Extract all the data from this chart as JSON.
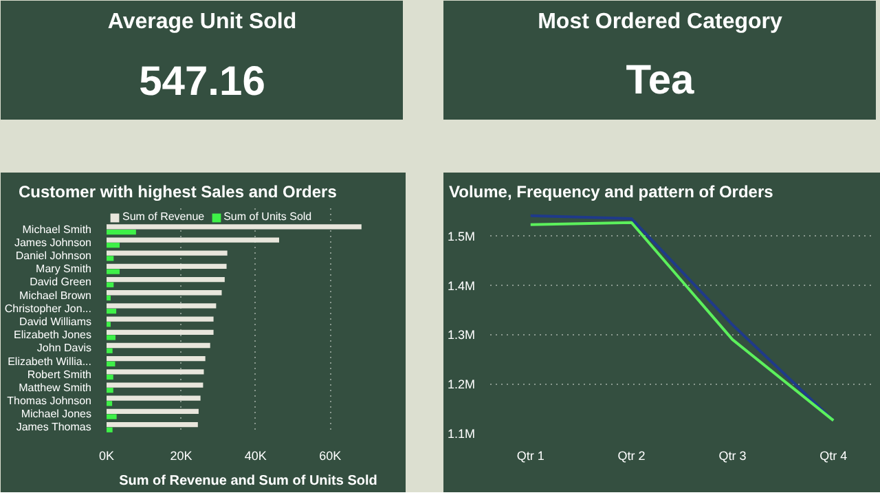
{
  "chart_data": [
    {
      "type": "other",
      "title": "Average Unit Sold",
      "annotations": [
        "547.16"
      ]
    },
    {
      "type": "other",
      "title": "Most Ordered Category",
      "annotations": [
        "Tea"
      ]
    },
    {
      "type": "bar",
      "orientation": "horizontal",
      "title": "Customer with highest Sales and Orders",
      "xlabel": "Sum of Revenue and Sum of Units Sold",
      "categories": [
        "Michael Smith",
        "James Johnson",
        "Daniel Johnson",
        "Mary Smith",
        "David Green",
        "Michael Brown",
        "Christopher Jon...",
        "David Williams",
        "Elizabeth Jones",
        "John Davis",
        "Elizabeth Willia...",
        "Robert Smith",
        "Matthew Smith",
        "Thomas Johnson",
        "Michael Jones",
        "James Thomas"
      ],
      "series": [
        {
          "name": "Sum of Revenue",
          "color": "#e8e6dc",
          "values": [
            68400,
            46300,
            32400,
            32200,
            31700,
            30900,
            29400,
            28700,
            28700,
            27800,
            26500,
            26100,
            25900,
            25200,
            24700,
            24500
          ]
        },
        {
          "name": "Sum of Units Sold",
          "color": "#3ef048",
          "values": [
            7900,
            3500,
            1900,
            3500,
            1900,
            1100,
            2600,
            1100,
            2400,
            1600,
            2300,
            1800,
            1800,
            1500,
            2700,
            1600
          ]
        }
      ],
      "xlim": [
        0,
        76000
      ],
      "xticks": [
        {
          "value": 0,
          "label": "0K"
        },
        {
          "value": 20000,
          "label": "20K"
        },
        {
          "value": 40000,
          "label": "40K"
        },
        {
          "value": 60000,
          "label": "60K"
        }
      ],
      "grid": "x",
      "legend": "top left"
    },
    {
      "type": "line",
      "title": "Volume, Frequency and pattern of Orders",
      "categories": [
        "Qtr 1",
        "Qtr 2",
        "Qtr 3",
        "Qtr 4"
      ],
      "series": [
        {
          "color": "#1f3a8a",
          "values": [
            1542000,
            1536000,
            1321000,
            1127000
          ]
        },
        {
          "color": "#5cf05c",
          "values": [
            1524000,
            1528000,
            1291000,
            1127000
          ]
        }
      ],
      "ylim": [
        1100000,
        1557000
      ],
      "yticks": [
        {
          "value": 1100000,
          "label": "1.1M"
        },
        {
          "value": 1200000,
          "label": "1.2M"
        },
        {
          "value": 1300000,
          "label": "1.3M"
        },
        {
          "value": 1400000,
          "label": "1.4M"
        },
        {
          "value": 1500000,
          "label": "1.5M"
        }
      ],
      "grid": "y",
      "legend": false,
      "marker": "none",
      "line_style": "solid"
    }
  ]
}
